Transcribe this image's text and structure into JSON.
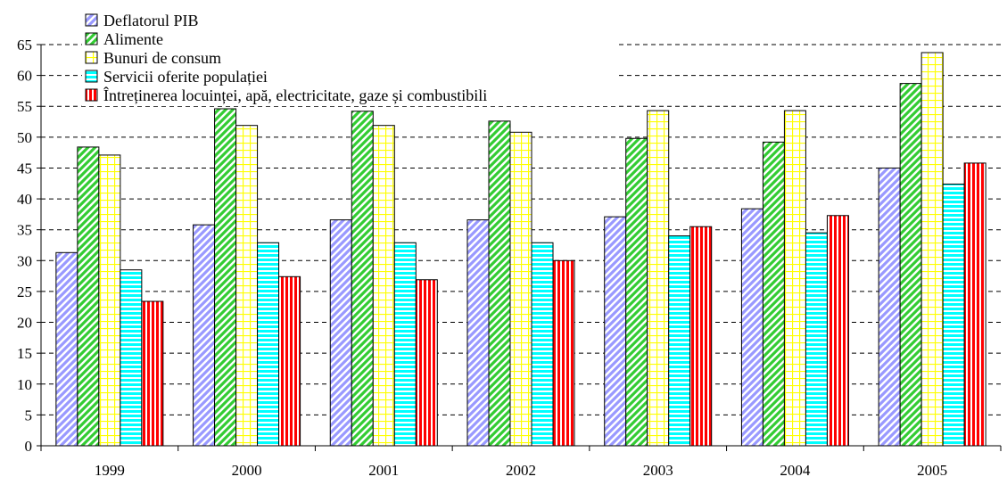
{
  "chart_data": {
    "type": "bar",
    "categories": [
      "1999",
      "2000",
      "2001",
      "2002",
      "2003",
      "2004",
      "2005"
    ],
    "series": [
      {
        "name": "Deflatorul PIB",
        "color": "#9999ff",
        "pattern": "diagonal-stripes",
        "values": [
          31.3,
          35.8,
          36.6,
          36.6,
          37.1,
          38.4,
          45.0
        ]
      },
      {
        "name": "Alimente",
        "color": "#33cc33",
        "pattern": "diagonal-stripes",
        "values": [
          48.4,
          54.6,
          54.2,
          52.6,
          49.8,
          49.2,
          58.7
        ]
      },
      {
        "name": "Bunuri de consum",
        "color": "#ffff00",
        "pattern": "grid",
        "values": [
          47.1,
          51.9,
          51.9,
          50.8,
          54.3,
          54.3,
          63.7
        ]
      },
      {
        "name": "Servicii oferite populației",
        "color": "#00ffff",
        "pattern": "horizontal-stripes",
        "values": [
          28.5,
          32.9,
          32.9,
          32.9,
          34.0,
          34.5,
          42.4
        ]
      },
      {
        "name": "Întreținerea locuinței, apă, electricitate, gaze și combustibili",
        "color": "#ff0000",
        "pattern": "vertical-stripes",
        "values": [
          23.4,
          27.4,
          26.9,
          30.0,
          35.5,
          37.3,
          45.8
        ]
      }
    ],
    "yticks": [
      0,
      5,
      10,
      15,
      20,
      25,
      30,
      35,
      40,
      45,
      50,
      55,
      60,
      65
    ],
    "ylim": [
      0,
      65
    ],
    "grid": true,
    "legend_position": "top-left",
    "title": "",
    "xlabel": "",
    "ylabel": ""
  }
}
